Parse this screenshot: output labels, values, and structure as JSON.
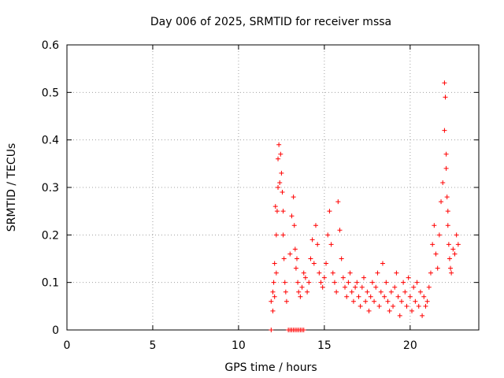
{
  "chart_data": {
    "type": "scatter",
    "title": "Day 006 of 2025, SRMTID for receiver mssa",
    "xlabel": "GPS time / hours",
    "ylabel": "SRMTID / TECUs",
    "xlim": [
      0,
      24
    ],
    "ylim": [
      0,
      0.6
    ],
    "xticks": [
      0,
      5,
      10,
      15,
      20
    ],
    "yticks": [
      0,
      0.1,
      0.2,
      0.3,
      0.4,
      0.5,
      0.6
    ],
    "xtick_labels": [
      "0",
      "5",
      "10",
      "15",
      "20"
    ],
    "ytick_labels": [
      "0",
      "0.1",
      "0.2",
      "0.3",
      "0.4",
      "0.5",
      "0.6"
    ],
    "grid": true,
    "legend": null,
    "marker": "plus",
    "color": "#ff0000",
    "series": [
      {
        "name": "SRMTID",
        "x": [
          11.9,
          12.0,
          12.0,
          12.05,
          12.1,
          12.1,
          12.15,
          12.2,
          12.2,
          12.25,
          12.3,
          12.3,
          12.35,
          12.4,
          12.45,
          12.5,
          12.55,
          12.6,
          12.6,
          12.65,
          12.7,
          12.75,
          12.8,
          13.0,
          13.1,
          13.2,
          13.25,
          13.3,
          13.35,
          13.4,
          13.45,
          13.5,
          13.6,
          13.7,
          13.8,
          13.9,
          14.0,
          14.1,
          14.2,
          14.3,
          14.4,
          14.5,
          14.6,
          14.7,
          14.8,
          14.9,
          15.0,
          15.1,
          15.2,
          15.3,
          15.4,
          15.5,
          15.6,
          15.7,
          15.8,
          15.9,
          16.0,
          16.1,
          16.2,
          16.3,
          16.4,
          16.5,
          16.6,
          16.7,
          16.8,
          16.9,
          17.0,
          17.1,
          17.2,
          17.3,
          17.4,
          17.5,
          17.6,
          17.7,
          17.8,
          17.9,
          18.0,
          18.1,
          18.2,
          18.3,
          18.4,
          18.5,
          18.6,
          18.7,
          18.8,
          18.9,
          19.0,
          19.1,
          19.2,
          19.3,
          19.4,
          19.5,
          19.6,
          19.7,
          19.8,
          19.9,
          20.0,
          20.1,
          20.2,
          20.3,
          20.4,
          20.5,
          20.6,
          20.7,
          20.8,
          20.9,
          21.0,
          21.1,
          21.2,
          21.3,
          21.4,
          21.5,
          21.6,
          21.7,
          21.8,
          21.9,
          22.0,
          22.0,
          22.05,
          22.1,
          22.1,
          22.15,
          22.2,
          22.2,
          22.25,
          22.3,
          22.35,
          22.4,
          22.5,
          22.6,
          22.7,
          22.8,
          11.9,
          12.9,
          13.0,
          13.1,
          13.2,
          13.3,
          13.4,
          13.5,
          13.6,
          13.7,
          13.8
        ],
        "y": [
          0.06,
          0.08,
          0.04,
          0.1,
          0.07,
          0.14,
          0.26,
          0.2,
          0.12,
          0.25,
          0.3,
          0.36,
          0.39,
          0.31,
          0.37,
          0.33,
          0.29,
          0.25,
          0.2,
          0.15,
          0.1,
          0.08,
          0.06,
          0.16,
          0.24,
          0.28,
          0.22,
          0.17,
          0.13,
          0.15,
          0.1,
          0.08,
          0.07,
          0.09,
          0.12,
          0.11,
          0.08,
          0.1,
          0.15,
          0.19,
          0.14,
          0.22,
          0.18,
          0.12,
          0.1,
          0.09,
          0.11,
          0.14,
          0.2,
          0.25,
          0.18,
          0.12,
          0.1,
          0.08,
          0.27,
          0.21,
          0.15,
          0.11,
          0.09,
          0.07,
          0.1,
          0.12,
          0.08,
          0.06,
          0.09,
          0.1,
          0.07,
          0.05,
          0.09,
          0.11,
          0.06,
          0.08,
          0.04,
          0.07,
          0.1,
          0.06,
          0.09,
          0.12,
          0.05,
          0.08,
          0.14,
          0.07,
          0.1,
          0.06,
          0.04,
          0.08,
          0.05,
          0.09,
          0.12,
          0.07,
          0.03,
          0.06,
          0.1,
          0.08,
          0.05,
          0.11,
          0.07,
          0.04,
          0.09,
          0.06,
          0.1,
          0.05,
          0.08,
          0.03,
          0.07,
          0.05,
          0.06,
          0.09,
          0.12,
          0.18,
          0.22,
          0.16,
          0.13,
          0.2,
          0.27,
          0.31,
          0.42,
          0.52,
          0.49,
          0.37,
          0.34,
          0.28,
          0.25,
          0.22,
          0.18,
          0.15,
          0.13,
          0.12,
          0.17,
          0.16,
          0.2,
          0.18,
          0.0,
          0.0,
          0.0,
          0.0,
          0.0,
          0.0,
          0.0,
          0.0,
          0.0,
          0.0,
          0.0
        ]
      }
    ]
  }
}
